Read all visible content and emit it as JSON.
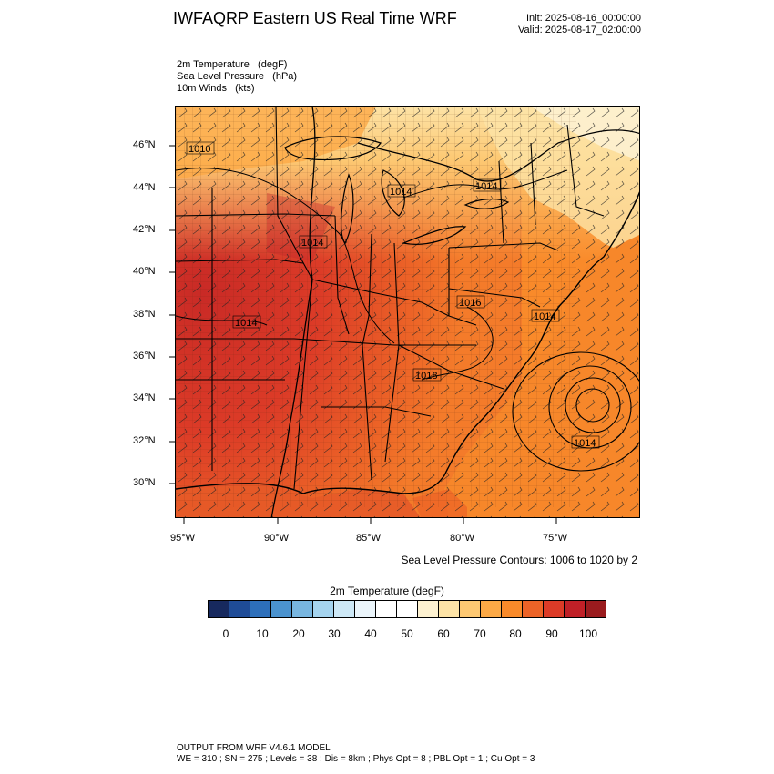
{
  "header": {
    "title": "IWFAQRP Eastern US Real Time WRF",
    "init": "Init: 2025-08-16_00:00:00",
    "valid": "Valid: 2025-08-17_02:00:00"
  },
  "fields": {
    "line1": "2m Temperature   (degF)",
    "line2": "Sea Level Pressure   (hPa)",
    "line3": "10m Winds   (kts)"
  },
  "axes": {
    "lat_labels": [
      "46°N",
      "44°N",
      "42°N",
      "40°N",
      "38°N",
      "36°N",
      "34°N",
      "32°N",
      "30°N"
    ],
    "lon_labels": [
      "95°W",
      "90°W",
      "85°W",
      "80°W",
      "75°W"
    ]
  },
  "contour_labels": [
    "1010",
    "1014",
    "1014",
    "1014",
    "1014",
    "1016",
    "1018",
    "1014",
    "1014"
  ],
  "contour_note": "Sea Level Pressure Contours: 1006 to 1020 by 2",
  "colorbar": {
    "title": "2m Temperature  (degF)",
    "labels": [
      "0",
      "10",
      "20",
      "30",
      "40",
      "50",
      "60",
      "70",
      "80",
      "90",
      "100"
    ],
    "colors": [
      "#17295e",
      "#1f4c97",
      "#2d6fba",
      "#4b93cf",
      "#78b6e0",
      "#a5d4ef",
      "#cde8f6",
      "#ebf5fb",
      "#ffffff",
      "#ffffff",
      "#fdf1d0",
      "#fde3a6",
      "#fdc872",
      "#fca946",
      "#f98a2a",
      "#ec6327",
      "#dc3b27",
      "#c02027",
      "#9a1b1e"
    ]
  },
  "footer": {
    "line1": "OUTPUT FROM WRF V4.6.1 MODEL",
    "line2": "WE = 310 ; SN = 275 ; Levels = 38 ; Dis = 8km ; Phys Opt = 8 ; PBL Opt = 1 ; Cu Opt = 3"
  }
}
